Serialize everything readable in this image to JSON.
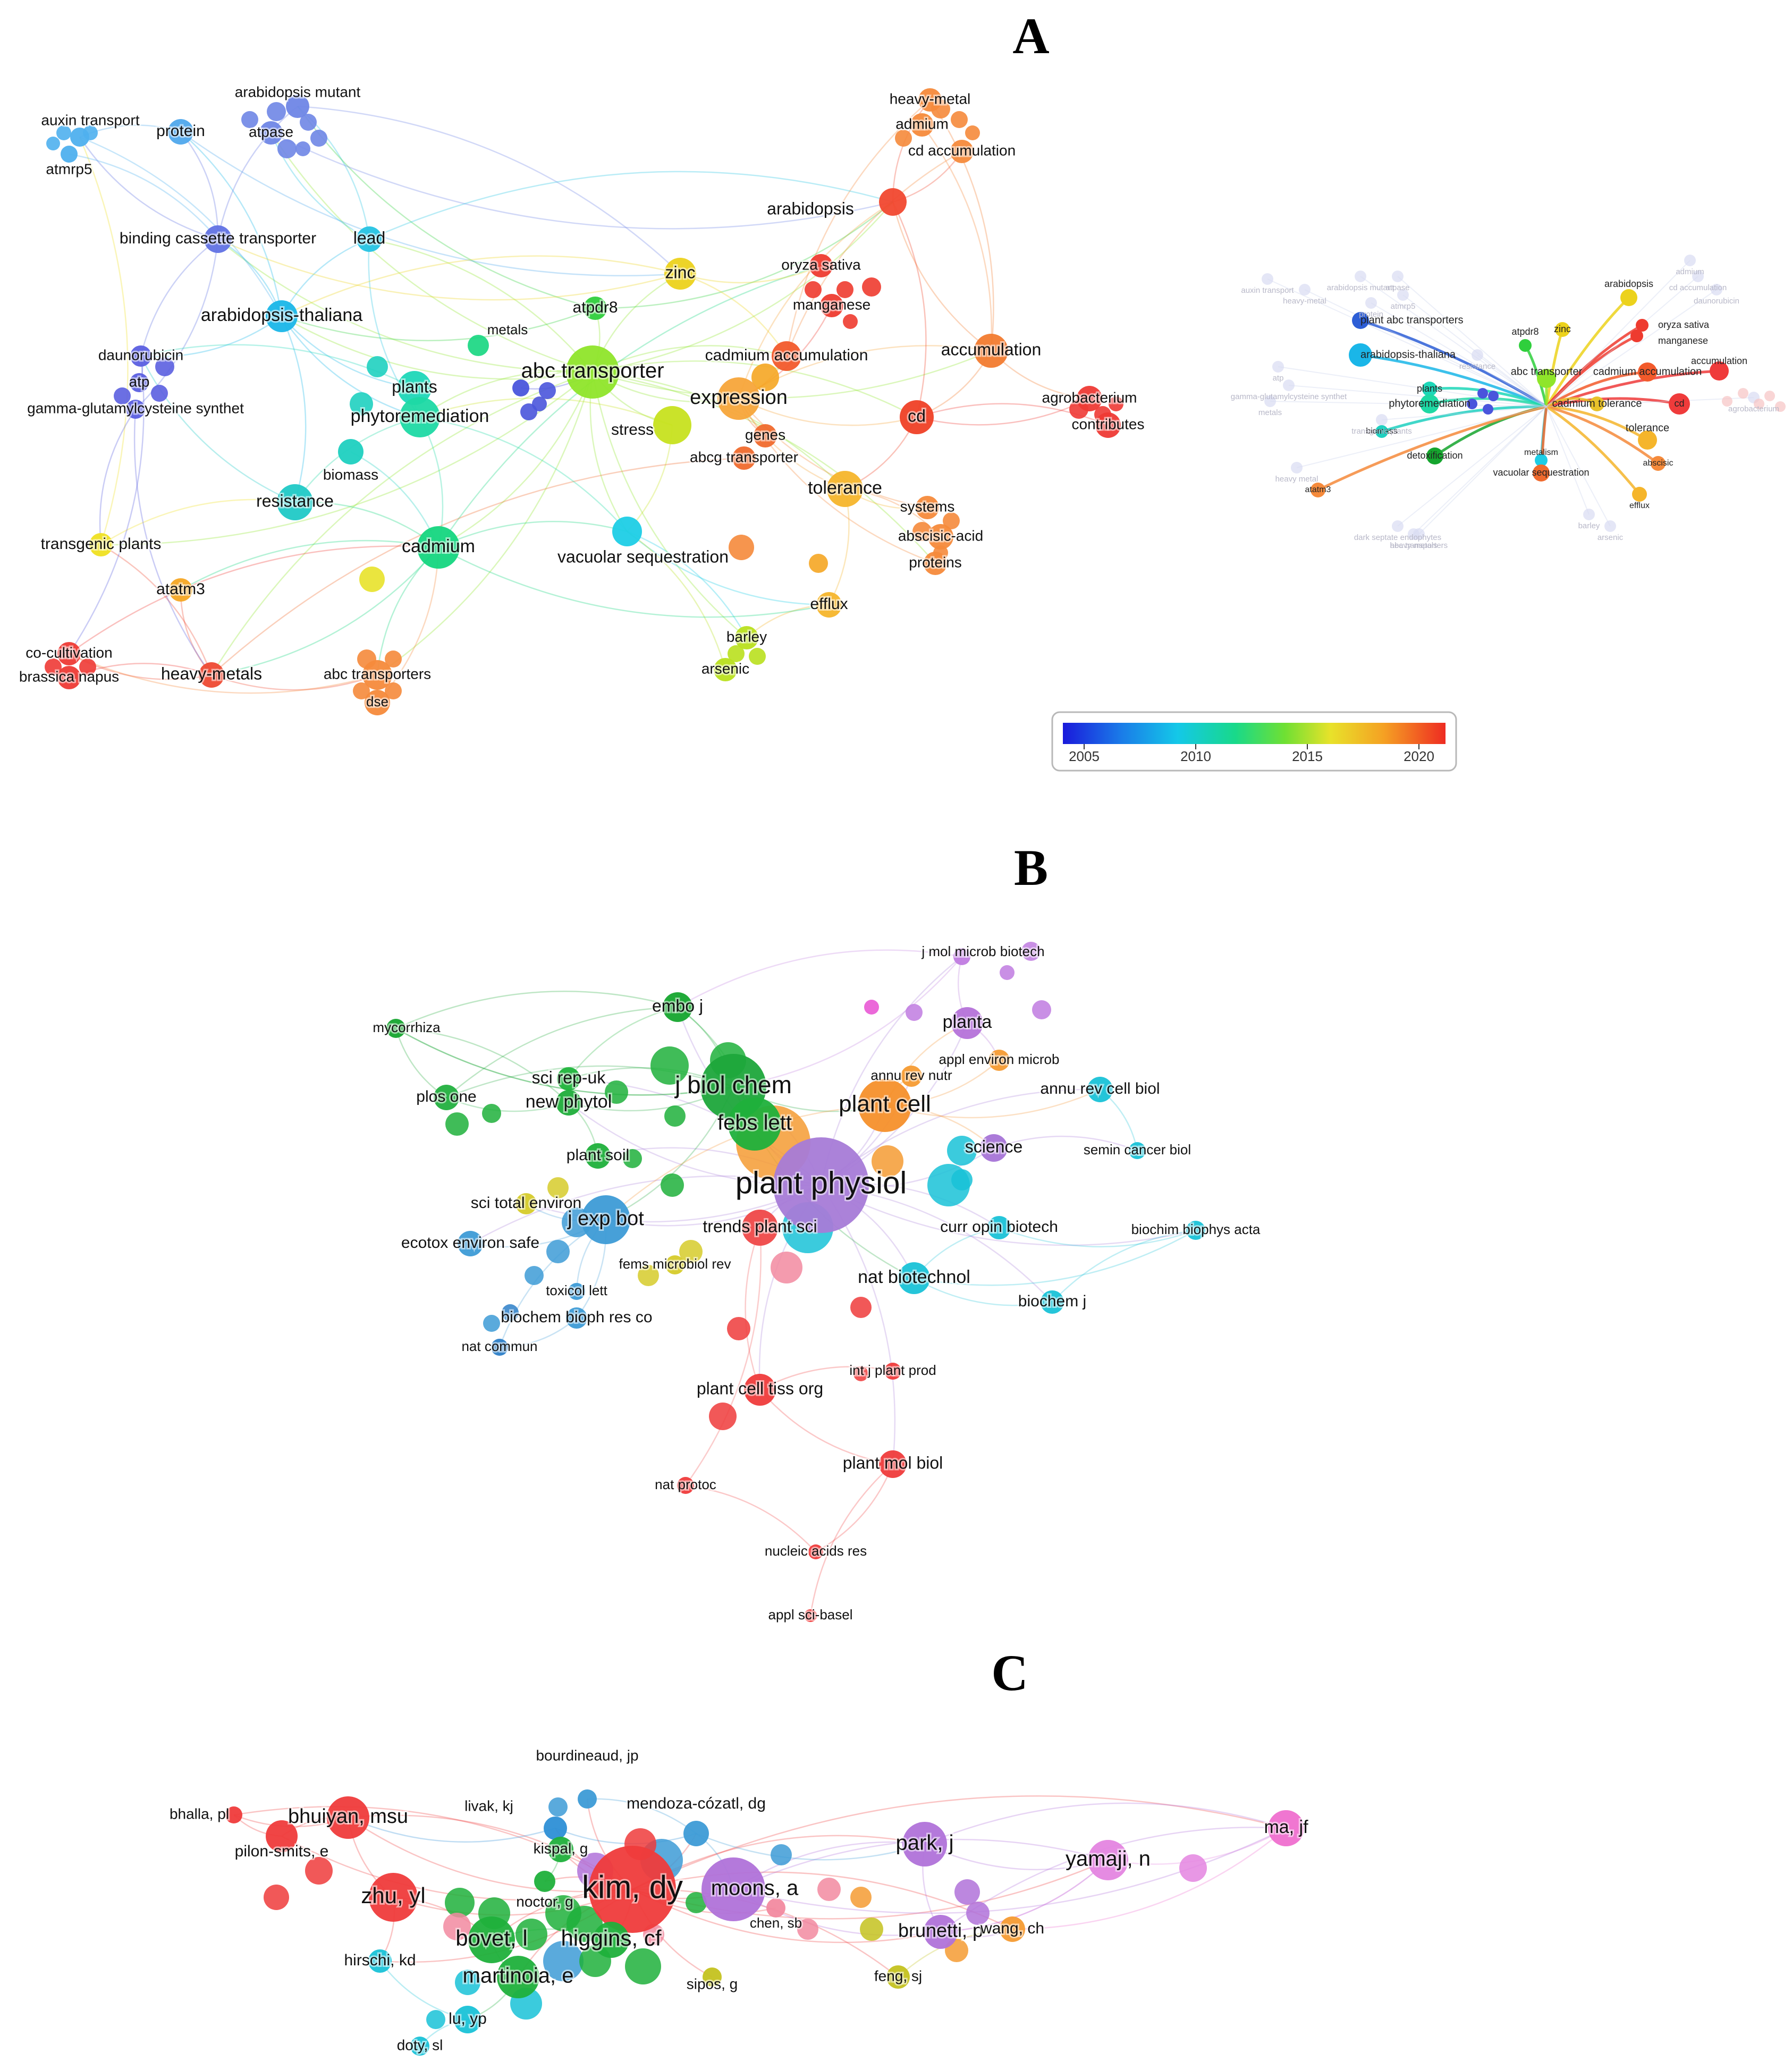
{
  "panels": [
    {
      "id": "A",
      "letter": "A",
      "nodes": [
        {
          "label": "auxin transport",
          "color": "#4fb0ee"
        },
        {
          "label": "atmrp5",
          "color": "#4fb0ee"
        },
        {
          "label": "arabidopsis mutant",
          "color": "#6f86e6"
        },
        {
          "label": "protein",
          "color": "#4fa8ec"
        },
        {
          "label": "atpase",
          "color": "#6f86e6"
        },
        {
          "label": "binding cassette transporter",
          "color": "#6172e4"
        },
        {
          "label": "lead",
          "color": "#25c3e3"
        },
        {
          "label": "arabidopsis-thaliana",
          "color": "#1ab6e8"
        },
        {
          "label": "metals",
          "color": "#4a55dc"
        },
        {
          "label": "daunorubicin",
          "color": "#5b5fe0"
        },
        {
          "label": "atp",
          "color": "#5b5fe0"
        },
        {
          "label": "gamma-glutamylcysteine synthet",
          "color": "#5b5fe0"
        },
        {
          "label": "plants",
          "color": "#1dd7b8"
        },
        {
          "label": "phytoremediation",
          "color": "#1ed9a4"
        },
        {
          "label": "biomass",
          "color": "#1fd0c0"
        },
        {
          "label": "resistance",
          "color": "#20c9c6"
        },
        {
          "label": "cadmium",
          "color": "#15d67f"
        },
        {
          "label": "transgenic plants",
          "color": "#efe021"
        },
        {
          "label": "atatm3",
          "color": "#f5a623"
        },
        {
          "label": "co-cultivation",
          "color": "#ee3a35"
        },
        {
          "label": "brassica napus",
          "color": "#ee3a35"
        },
        {
          "label": "heavy-metals",
          "color": "#ee4a33"
        },
        {
          "label": "abc transporters",
          "color": "#f58a3b"
        },
        {
          "label": "dse",
          "color": "#f58a3b"
        },
        {
          "label": "atpdr8",
          "color": "#2fcf3c"
        },
        {
          "label": "abc transporter",
          "color": "#8fe52a"
        },
        {
          "label": "zinc",
          "color": "#ecd21c"
        },
        {
          "label": "stress",
          "color": "#c7e21f"
        },
        {
          "label": "vacuolar sequestration",
          "color": "#1dcde6"
        },
        {
          "label": "expression",
          "color": "#f7a53a"
        },
        {
          "label": "genes",
          "color": "#f06a2d"
        },
        {
          "label": "abcg transporter",
          "color": "#f06a2d"
        },
        {
          "label": "cadmium accumulation",
          "color": "#f25a2b"
        },
        {
          "label": "oryza sativa",
          "color": "#ee3b2f"
        },
        {
          "label": "manganese",
          "color": "#ee3b2f"
        },
        {
          "label": "arabidopsis",
          "color": "#f1482f"
        },
        {
          "label": "heavy-metal",
          "color": "#f58a3b"
        },
        {
          "label": "admium",
          "color": "#f58a3b"
        },
        {
          "label": "cd accumulation",
          "color": "#f58a3b"
        },
        {
          "label": "accumulation",
          "color": "#f27b2f"
        },
        {
          "label": "cd",
          "color": "#ef4026"
        },
        {
          "label": "agrobacterium",
          "color": "#ee3a35"
        },
        {
          "label": "contributes",
          "color": "#ee3a35"
        },
        {
          "label": "tolerance",
          "color": "#f5b52b"
        },
        {
          "label": "systems",
          "color": "#f58a3b"
        },
        {
          "label": "abscisic-acid",
          "color": "#f58a3b"
        },
        {
          "label": "proteins",
          "color": "#f58a3b"
        },
        {
          "label": "efflux",
          "color": "#f5b52b"
        },
        {
          "label": "barley",
          "color": "#b9e01e"
        },
        {
          "label": "arsenic",
          "color": "#b9e01e"
        }
      ],
      "overlay": {
        "labels_bold": [
          "plant abc transporters",
          "arabidopsis-thaliana",
          "atpdr8",
          "zinc",
          "arabidopsis",
          "oryza sativa",
          "manganese",
          "cadmium accumulation",
          "accumulation",
          "cd",
          "plants",
          "phytoremediation",
          "abc transporter",
          "cadmium tolerance",
          "biomass",
          "detoxification",
          "metalism",
          "vacuolar sequestration",
          "tolerance",
          "abscisic",
          "atatm3",
          "efflux"
        ],
        "labels_faded": [
          "auxin transport",
          "arabidopsis mutant",
          "protein",
          "atpase",
          "atmrp5",
          "heavy-metal",
          "admium",
          "cd accumulation",
          "daunorubicin",
          "atp",
          "gamma-glutamylcysteine synthet",
          "metals",
          "resistance",
          "transgenic plants",
          "heavy metal",
          "dark septate endophytes",
          "abc transporters",
          "heavy-metals",
          "barley",
          "arsenic",
          "agrobacterium"
        ]
      },
      "colorbar": {
        "ticks": [
          "2005",
          "2010",
          "2015",
          "2020"
        ],
        "gradient": [
          "#1a1adb",
          "#1a7ae8",
          "#14c8e8",
          "#18d98a",
          "#6fe033",
          "#e8e22a",
          "#f5a023",
          "#ee2b22"
        ]
      }
    },
    {
      "id": "B",
      "letter": "B",
      "nodes": [
        {
          "label": "j mol microb biotech",
          "color": "#c07be0"
        },
        {
          "label": "mycorrhiza",
          "color": "#15a52e"
        },
        {
          "label": "embo j",
          "color": "#15a52e"
        },
        {
          "label": "planta",
          "color": "#b572d9"
        },
        {
          "label": "appl environ microb",
          "color": "#f59b32"
        },
        {
          "label": "sci rep-uk",
          "color": "#1fb43b"
        },
        {
          "label": "annu rev nutr",
          "color": "#f59b32"
        },
        {
          "label": "j biol chem",
          "color": "#1ea63b"
        },
        {
          "label": "annu rev cell biol",
          "color": "#19c2d7"
        },
        {
          "label": "plos one",
          "color": "#22b03f"
        },
        {
          "label": "new phytol",
          "color": "#1fad3a"
        },
        {
          "label": "febs lett",
          "color": "#1fb03b"
        },
        {
          "label": "plant cell",
          "color": "#f5902b"
        },
        {
          "label": "science",
          "color": "#a774d7"
        },
        {
          "label": "semin cancer biol",
          "color": "#19c2d7"
        },
        {
          "label": "plant soil",
          "color": "#1fb03b"
        },
        {
          "label": "plant physiol",
          "color": "#a67bd7"
        },
        {
          "label": "sci total environ",
          "color": "#d6cb2a"
        },
        {
          "label": "j exp bot",
          "color": "#3d9bd6"
        },
        {
          "label": "trends plant sci",
          "color": "#ef4848"
        },
        {
          "label": "curr opin biotech",
          "color": "#19c2d7"
        },
        {
          "label": "biochim biophys acta",
          "color": "#19c2d7"
        },
        {
          "label": "ecotox environ safe",
          "color": "#3d9bd6"
        },
        {
          "label": "fems microbiol rev",
          "color": "#d6cb2a"
        },
        {
          "label": "nat biotechnol",
          "color": "#19c2d7"
        },
        {
          "label": "toxicol lett",
          "color": "#3d9bd6"
        },
        {
          "label": "biochem j",
          "color": "#19c2d7"
        },
        {
          "label": "biochem bioph res co",
          "color": "#3d9bd6"
        },
        {
          "label": "nat commun",
          "color": "#2d7fc8"
        },
        {
          "label": "int j plant prod",
          "color": "#ef3b3b"
        },
        {
          "label": "plant cell tiss org",
          "color": "#ef3b3b"
        },
        {
          "label": "plant mol biol",
          "color": "#ef3b3b"
        },
        {
          "label": "nat protoc",
          "color": "#ef3b3b"
        },
        {
          "label": "nucleic acids res",
          "color": "#ef3b3b"
        },
        {
          "label": "appl sci-basel",
          "color": "#ef3b3b"
        }
      ]
    },
    {
      "id": "C",
      "letter": "C",
      "nodes": [
        {
          "label": "bourdineaud, jp",
          "color": "#3d9bd6"
        },
        {
          "label": "bhalla, pl",
          "color": "#ef3b3b"
        },
        {
          "label": "livak, kj",
          "color": "#2d8fd6"
        },
        {
          "label": "mendoza-cózatl, dg",
          "color": "#3d9bd6"
        },
        {
          "label": "bhuiyan, msu",
          "color": "#ef3b3b"
        },
        {
          "label": "kispal, g",
          "color": "#1fb03b"
        },
        {
          "label": "ma, jf",
          "color": "#ef6fcf"
        },
        {
          "label": "pilon-smits, e",
          "color": "#ef3b3b"
        },
        {
          "label": "park, j",
          "color": "#b072d9"
        },
        {
          "label": "yamaji, n",
          "color": "#e485e0"
        },
        {
          "label": "kim, dy",
          "color": "#ef3b3b"
        },
        {
          "label": "noctor, g",
          "color": "#1fb03b"
        },
        {
          "label": "moons, a",
          "color": "#b072d9"
        },
        {
          "label": "zhu, yl",
          "color": "#ef3b3b"
        },
        {
          "label": "chen, sb",
          "color": "#f28aa0"
        },
        {
          "label": "brunetti, p",
          "color": "#b072d9"
        },
        {
          "label": "wang, ch",
          "color": "#f59b32"
        },
        {
          "label": "bovet, l",
          "color": "#1fb03b"
        },
        {
          "label": "higgins, cf",
          "color": "#1fb03b"
        },
        {
          "label": "hirschi, kd",
          "color": "#19c2d7"
        },
        {
          "label": "martinoia, e",
          "color": "#1fb03b"
        },
        {
          "label": "feng, sj",
          "color": "#c4c21f"
        },
        {
          "label": "sipos, g",
          "color": "#c4c21f"
        },
        {
          "label": "lu, yp",
          "color": "#19c2d7"
        },
        {
          "label": "doty, sl",
          "color": "#19c2d7"
        }
      ]
    }
  ]
}
